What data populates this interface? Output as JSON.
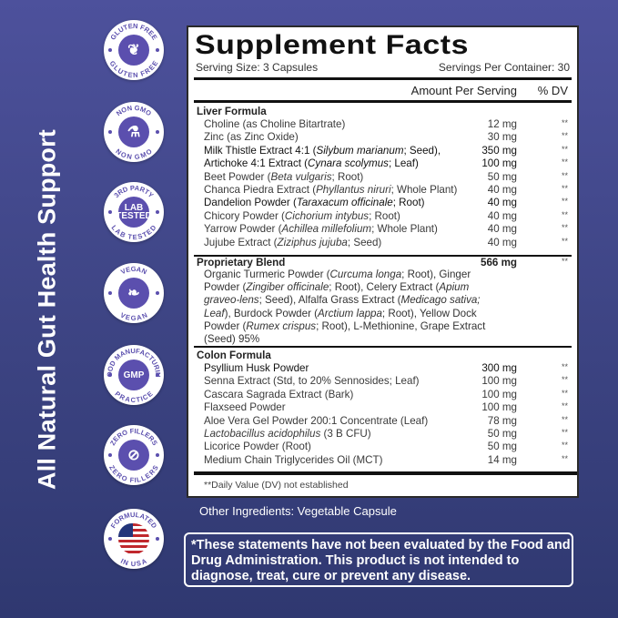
{
  "side_title": "All Natural Gut Health Support",
  "badges": [
    {
      "top": "GLUTEN FREE",
      "bottom": "GLUTEN FREE",
      "icon": "wheat-icon",
      "center": ""
    },
    {
      "top": "NON GMO",
      "bottom": "NON GMO",
      "icon": "flask-icon",
      "center": ""
    },
    {
      "top": "3RD PARTY",
      "bottom": "LAB TESTED",
      "icon": "lab-tested-icon",
      "center": "LAB TESTED"
    },
    {
      "top": "VEGAN",
      "bottom": "VEGAN",
      "icon": "leaf-v-icon",
      "center": ""
    },
    {
      "top": "GOOD MANUFACTURING",
      "bottom": "PRACTICE",
      "icon": "gmp-icon",
      "center": "GMP"
    },
    {
      "top": "ZERO FILLERS",
      "bottom": "ZERO FILLERS",
      "icon": "no-filler-icon",
      "center": ""
    },
    {
      "top": "FORMULATED",
      "bottom": "IN USA",
      "icon": "us-flag-icon",
      "center": ""
    }
  ],
  "facts": {
    "title": "Supplement Facts",
    "serving_size": "Serving Size: 3 Capsules",
    "servings_per_container": "Servings Per Container: 30",
    "amount_header": "Amount Per Serving",
    "dv_header": "% DV",
    "liver": {
      "label": "Liver Formula",
      "rows": [
        {
          "name": [
            {
              "t": "Choline (as Choline Bitartrate)"
            }
          ],
          "amount": "12 mg",
          "dv": "**"
        },
        {
          "name": [
            {
              "t": "Zinc (as Zinc Oxide)"
            }
          ],
          "amount": "30 mg",
          "dv": "**"
        },
        {
          "name": [
            {
              "t": "Milk Thistle Extract 4:1 ("
            },
            {
              "t": "Silybum marianum",
              "i": true
            },
            {
              "t": "; Seed),"
            }
          ],
          "amount": "350 mg",
          "dv": "**",
          "dark": true
        },
        {
          "name": [
            {
              "t": "Artichoke 4:1 Extract ("
            },
            {
              "t": "Cynara scolymus",
              "i": true
            },
            {
              "t": "; Leaf)"
            }
          ],
          "amount": "100 mg",
          "dv": "**",
          "dark": true
        },
        {
          "name": [
            {
              "t": "Beet Powder ("
            },
            {
              "t": "Beta vulgaris",
              "i": true
            },
            {
              "t": "; Root)"
            }
          ],
          "amount": "50 mg",
          "dv": "**"
        },
        {
          "name": [
            {
              "t": "Chanca Piedra Extract ("
            },
            {
              "t": "Phyllantus niruri",
              "i": true
            },
            {
              "t": "; Whole Plant)"
            }
          ],
          "amount": "40 mg",
          "dv": "**"
        },
        {
          "name": [
            {
              "t": "Dandelion Powder ("
            },
            {
              "t": "Taraxacum officinale",
              "i": true
            },
            {
              "t": "; Root)"
            }
          ],
          "amount": "40 mg",
          "dv": "**",
          "dark": true
        },
        {
          "name": [
            {
              "t": "Chicory Powder ("
            },
            {
              "t": "Cichorium intybus",
              "i": true
            },
            {
              "t": "; Root)"
            }
          ],
          "amount": "40 mg",
          "dv": "**"
        },
        {
          "name": [
            {
              "t": "Yarrow Powder ("
            },
            {
              "t": "Achillea millefolium",
              "i": true
            },
            {
              "t": "; Whole Plant)"
            }
          ],
          "amount": "40 mg",
          "dv": "**"
        },
        {
          "name": [
            {
              "t": "Jujube Extract ("
            },
            {
              "t": "Ziziphus jujuba",
              "i": true
            },
            {
              "t": "; Seed)"
            }
          ],
          "amount": "40 mg",
          "dv": "**"
        }
      ]
    },
    "blend": {
      "label": "Proprietary Blend",
      "amount": "566 mg",
      "dv": "**",
      "text": [
        {
          "t": "Organic Turmeric Powder ("
        },
        {
          "t": "Curcuma longa",
          "i": true
        },
        {
          "t": "; Root), Ginger Powder ("
        },
        {
          "t": "Zingiber officinale",
          "i": true
        },
        {
          "t": "; Root), Celery Extract ("
        },
        {
          "t": "Apium graveo-lens",
          "i": true
        },
        {
          "t": "; Seed), Alfalfa Grass Extract ("
        },
        {
          "t": "Medicago sativa; Leaf",
          "i": true
        },
        {
          "t": "), Burdock Powder ("
        },
        {
          "t": "Arctium lappa",
          "i": true
        },
        {
          "t": "; Root), Yellow Dock Powder ("
        },
        {
          "t": "Rumex crispus",
          "i": true
        },
        {
          "t": "; Root), L-Methionine, Grape Extract (Seed) 95%"
        }
      ]
    },
    "colon": {
      "label": "Colon Formula",
      "rows": [
        {
          "name": [
            {
              "t": "Psyllium Husk Powder"
            }
          ],
          "amount": "300 mg",
          "dv": "**",
          "dark": true
        },
        {
          "name": [
            {
              "t": "Senna Extract (Std, to 20% Sennosides; Leaf)"
            }
          ],
          "amount": "100 mg",
          "dv": "**"
        },
        {
          "name": [
            {
              "t": "Cascara Sagrada Extract (Bark)"
            }
          ],
          "amount": "100 mg",
          "dv": "**"
        },
        {
          "name": [
            {
              "t": "Flaxseed Powder"
            }
          ],
          "amount": "100 mg",
          "dv": "**"
        },
        {
          "name": [
            {
              "t": "Aloe Vera Gel Powder 200:1 Concentrate (Leaf)"
            }
          ],
          "amount": "78 mg",
          "dv": "**"
        },
        {
          "name": [
            {
              "t": "Lactobacillus acidophilus",
              "i": true
            },
            {
              "t": " (3 B CFU)"
            }
          ],
          "amount": "50 mg",
          "dv": "**"
        },
        {
          "name": [
            {
              "t": "Licorice Powder (Root)"
            }
          ],
          "amount": "50 mg",
          "dv": "**"
        },
        {
          "name": [
            {
              "t": "Medium Chain Triglycerides Oil (MCT)"
            }
          ],
          "amount": "14 mg",
          "dv": "**"
        }
      ]
    },
    "footnote": "**Daily Value (DV) not established"
  },
  "other_ingredients": "Other Ingredients: Vegetable Capsule",
  "disclaimer": "*These statements have not been evaluated by the Food and Drug Administration. This product is not intended to diagnose, treat, cure or prevent any disease.",
  "colors": {
    "badge_purple": "#5b4fae",
    "background_top": "#4d519c",
    "background_bottom": "#2f3870"
  }
}
